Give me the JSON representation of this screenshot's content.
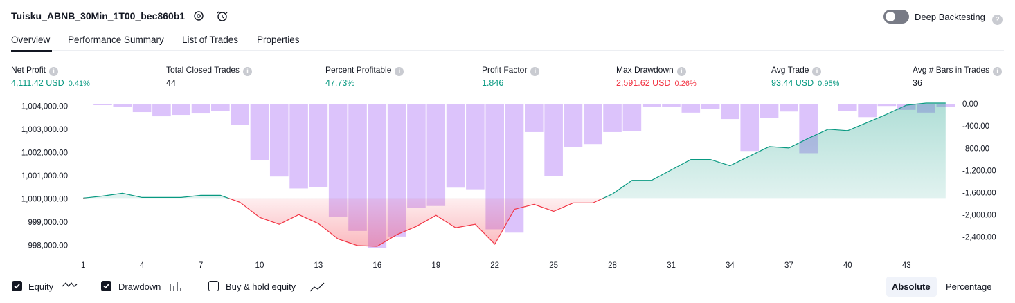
{
  "header": {
    "title": "Tuisku_ABNB_30Min_1T00_bec860b1",
    "toggle": "Deep Backtesting"
  },
  "tabs": [
    "Overview",
    "Performance Summary",
    "List of Trades",
    "Properties"
  ],
  "metrics": [
    {
      "label": "Net Profit",
      "value": "4,111.42 USD",
      "percent": "0.41%",
      "color": "#089981"
    },
    {
      "label": "Total Closed Trades",
      "value": "44",
      "color": "#131722"
    },
    {
      "label": "Percent Profitable",
      "value": "47.73%",
      "color": "#089981"
    },
    {
      "label": "Profit Factor",
      "value": "1.846",
      "color": "#089981"
    },
    {
      "label": "Max Drawdown",
      "value": "2,591.62 USD",
      "percent": "0.26%",
      "color": "#f23645"
    },
    {
      "label": "Avg Trade",
      "value": "93.44 USD",
      "percent": "0.95%",
      "color": "#089981"
    },
    {
      "label": "Avg # Bars in Trades",
      "value": "36",
      "color": "#131722"
    }
  ],
  "legend": {
    "checks": [
      {
        "label": "Equity",
        "checked": true
      },
      {
        "label": "Drawdown",
        "checked": true
      },
      {
        "label": "Buy & hold equity",
        "checked": false
      }
    ],
    "buttons": [
      "Absolute",
      "Percentage"
    ]
  },
  "chart_data": {
    "type": "line",
    "x": [
      1,
      2,
      3,
      4,
      5,
      6,
      7,
      8,
      9,
      10,
      11,
      12,
      13,
      14,
      15,
      16,
      17,
      18,
      19,
      20,
      21,
      22,
      23,
      24,
      25,
      26,
      27,
      28,
      29,
      30,
      31,
      32,
      33,
      34,
      35,
      36,
      37,
      38,
      39,
      40,
      41,
      42,
      43,
      44,
      45
    ],
    "xlim": [
      0.5,
      45.5
    ],
    "xticks": [
      1,
      4,
      7,
      10,
      13,
      16,
      19,
      22,
      25,
      28,
      31,
      34,
      37,
      40,
      43
    ],
    "ylim": [
      997500,
      1004080
    ],
    "yticks": [
      {
        "value": 1004000,
        "label": "1,004,000.00"
      },
      {
        "value": 1003000,
        "label": "1,003,000.00"
      },
      {
        "value": 1002000,
        "label": "1,002,000.00"
      },
      {
        "value": 1001000,
        "label": "1,001,000.00"
      },
      {
        "value": 1000000,
        "label": "1,000,000.00"
      },
      {
        "value": 999000,
        "label": "999,000.00"
      },
      {
        "value": 998000,
        "label": "998,000.00"
      }
    ],
    "y2lim": [
      -2740,
      0
    ],
    "y2ticks": [
      {
        "value": 0,
        "label": "0.00"
      },
      {
        "value": -400,
        "label": "-400.00"
      },
      {
        "value": -800,
        "label": "-800.00"
      },
      {
        "value": -1200,
        "label": "-1,200.00"
      },
      {
        "value": -1600,
        "label": "-1,600.00"
      },
      {
        "value": -2000,
        "label": "-2,000.00"
      },
      {
        "value": -2400,
        "label": "-2,400.00"
      }
    ],
    "series": [
      {
        "name": "Equity",
        "color": "#089981",
        "negative_color": "#f23645",
        "values": [
          1000000,
          1000090,
          1000210,
          1000030,
          1000030,
          1000030,
          1000120,
          1000120,
          999820,
          999170,
          998870,
          999290,
          998900,
          998240,
          997950,
          997920,
          998420,
          998780,
          999260,
          998720,
          998870,
          998010,
          999520,
          999730,
          999430,
          999790,
          999790,
          1000180,
          1000770,
          1000770,
          1001220,
          1001670,
          1001670,
          1001400,
          1001820,
          1002230,
          1002170,
          1002590,
          1002980,
          1002920,
          1003270,
          1003630,
          1004020,
          1004110,
          1004110
        ]
      },
      {
        "name": "Drawdown",
        "type": "bar",
        "axis": "y2",
        "color": "#dcc3fb",
        "values": [
          -12,
          -25,
          -50,
          -150,
          -225,
          -200,
          -175,
          -125,
          -375,
          -1010,
          -1310,
          -1525,
          -1500,
          -2040,
          -2290,
          -2592,
          -2390,
          -1875,
          -1840,
          -1510,
          -1540,
          -2260,
          -2320,
          -510,
          -1300,
          -775,
          -725,
          -510,
          -490,
          -50,
          -50,
          -160,
          -100,
          -275,
          -850,
          -260,
          -140,
          -890,
          -5,
          -125,
          -240,
          -40,
          -110,
          -160,
          -60
        ]
      }
    ]
  }
}
